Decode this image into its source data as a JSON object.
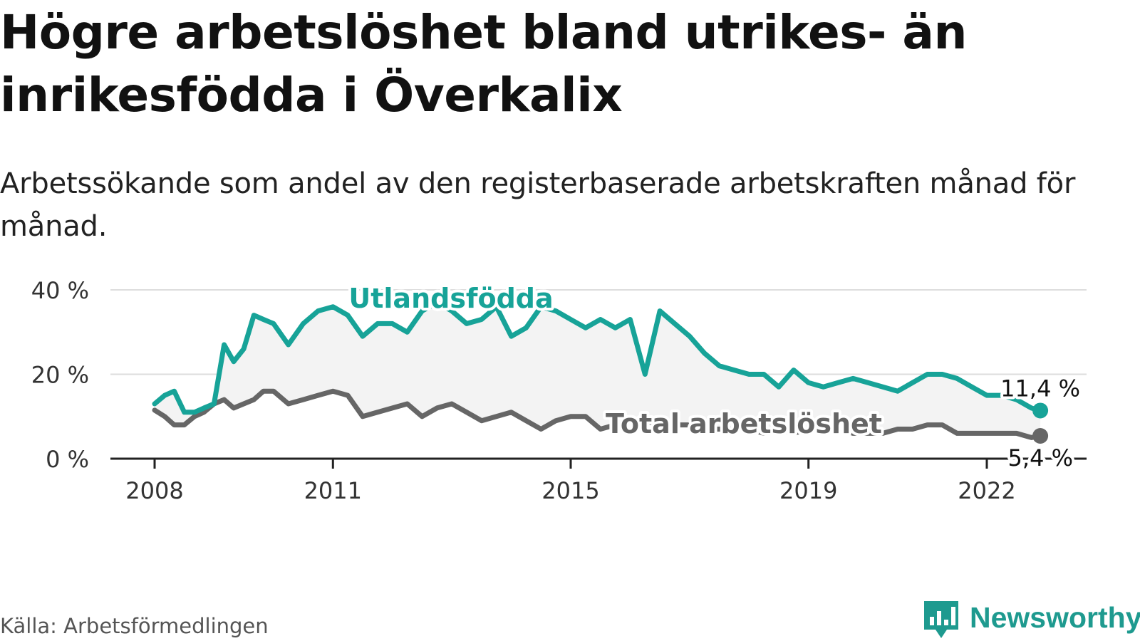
{
  "header": {
    "title": "Högre arbetslöshet bland utrikes- än inrikesfödda i Överkalix",
    "subtitle": "Arbetssökande som andel av den registerbaserade arbetskraften månad för månad."
  },
  "footer": {
    "source": "Källa: Arbetsförmedlingen",
    "brand": "Newsworthy"
  },
  "colors": {
    "foreign": "#17a398",
    "total": "#666666",
    "band": "#f3f3f3",
    "grid": "#dddddd"
  },
  "chart_data": {
    "type": "line",
    "title": "Högre arbetslöshet bland utrikes- än inrikesfödda i Överkalix",
    "ylim": [
      0,
      40
    ],
    "yticks": [
      0,
      20,
      40
    ],
    "ytick_labels": [
      "0 %",
      "20 %",
      "40 %"
    ],
    "xticks": [
      2008,
      2011,
      2015,
      2019,
      2022
    ],
    "xtick_labels": [
      "2008",
      "2011",
      "2015",
      "2019",
      "2022"
    ],
    "series": [
      {
        "name": "Utlandsfödda",
        "label": "Utlandsfödda",
        "end_label": "11,4 %",
        "end_value": 11.4,
        "x": [
          2008.0,
          2008.17,
          2008.33,
          2008.5,
          2008.67,
          2008.83,
          2009.0,
          2009.17,
          2009.33,
          2009.5,
          2009.67,
          2009.83,
          2010.0,
          2010.25,
          2010.5,
          2010.75,
          2011.0,
          2011.25,
          2011.5,
          2011.75,
          2012.0,
          2012.25,
          2012.5,
          2012.75,
          2013.0,
          2013.25,
          2013.5,
          2013.75,
          2014.0,
          2014.25,
          2014.5,
          2014.75,
          2015.0,
          2015.25,
          2015.5,
          2015.75,
          2016.0,
          2016.25,
          2016.5,
          2016.75,
          2017.0,
          2017.25,
          2017.5,
          2017.75,
          2018.0,
          2018.25,
          2018.5,
          2018.75,
          2019.0,
          2019.25,
          2019.5,
          2019.75,
          2020.0,
          2020.25,
          2020.5,
          2020.75,
          2021.0,
          2021.25,
          2021.5,
          2021.75,
          2022.0,
          2022.25,
          2022.5,
          2022.75,
          2022.9
        ],
        "y": [
          13,
          15,
          16,
          11,
          11,
          12,
          13,
          27,
          23,
          26,
          34,
          33,
          32,
          27,
          32,
          35,
          36,
          34,
          29,
          32,
          32,
          30,
          35,
          37,
          35,
          32,
          33,
          36,
          29,
          31,
          36,
          35,
          33,
          31,
          33,
          31,
          33,
          20,
          35,
          32,
          29,
          25,
          22,
          21,
          20,
          20,
          17,
          21,
          18,
          17,
          18,
          19,
          18,
          17,
          16,
          18,
          20,
          20,
          19,
          17,
          15,
          15,
          14,
          12,
          11.4
        ]
      },
      {
        "name": "Total arbetslöshet",
        "label": "Total arbetslöshet",
        "end_label": "5,4 %",
        "end_value": 5.4,
        "x": [
          2008.0,
          2008.17,
          2008.33,
          2008.5,
          2008.67,
          2008.83,
          2009.0,
          2009.17,
          2009.33,
          2009.5,
          2009.67,
          2009.83,
          2010.0,
          2010.25,
          2010.5,
          2010.75,
          2011.0,
          2011.25,
          2011.5,
          2011.75,
          2012.0,
          2012.25,
          2012.5,
          2012.75,
          2013.0,
          2013.25,
          2013.5,
          2013.75,
          2014.0,
          2014.25,
          2014.5,
          2014.75,
          2015.0,
          2015.25,
          2015.5,
          2015.75,
          2016.0,
          2016.25,
          2016.5,
          2016.75,
          2017.0,
          2017.25,
          2017.5,
          2017.75,
          2018.0,
          2018.25,
          2018.5,
          2018.75,
          2019.0,
          2019.25,
          2019.5,
          2019.75,
          2020.0,
          2020.25,
          2020.5,
          2020.75,
          2021.0,
          2021.25,
          2021.5,
          2021.75,
          2022.0,
          2022.25,
          2022.5,
          2022.75,
          2022.9
        ],
        "y": [
          11.5,
          10,
          8,
          8,
          10,
          11,
          13,
          14,
          12,
          13,
          14,
          16,
          16,
          13,
          14,
          15,
          16,
          15,
          10,
          11,
          12,
          13,
          10,
          12,
          13,
          11,
          9,
          10,
          11,
          9,
          7,
          9,
          10,
          10,
          7,
          8,
          9,
          9,
          8,
          8,
          8,
          7,
          7,
          7,
          7,
          6,
          7,
          6,
          7,
          7,
          7,
          6,
          6,
          6,
          7,
          7,
          8,
          8,
          6,
          6,
          6,
          6,
          6,
          5,
          5.4
        ]
      }
    ]
  }
}
